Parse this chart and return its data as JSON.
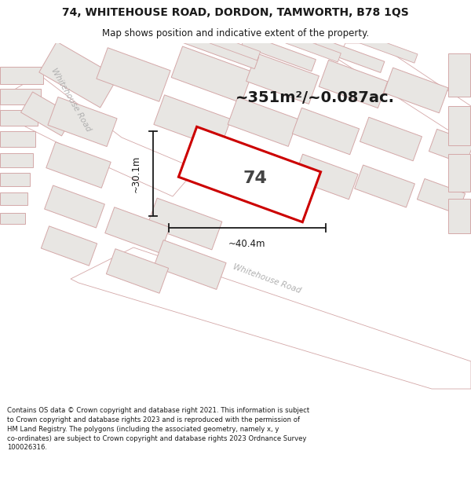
{
  "title_line1": "74, WHITEHOUSE ROAD, DORDON, TAMWORTH, B78 1QS",
  "title_line2": "Map shows position and indicative extent of the property.",
  "area_text": "~351m²/~0.087ac.",
  "dim_width": "~40.4m",
  "dim_height": "~30.1m",
  "property_number": "74",
  "footer_text_lines": [
    "Contains OS data © Crown copyright and database right 2021. This information is subject",
    "to Crown copyright and database rights 2023 and is reproduced with the permission of",
    "HM Land Registry. The polygons (including the associated geometry, namely x, y",
    "co-ordinates) are subject to Crown copyright and database rights 2023 Ordnance Survey",
    "100026316."
  ],
  "map_bg": "#f7f6f4",
  "title_bg": "#ffffff",
  "footer_bg": "#ffffff",
  "property_fill": "#ffffff",
  "property_edge": "#cc0000",
  "building_fill": "#e8e6e3",
  "building_edge": "#d4a8a8",
  "road_fill": "#ffffff",
  "road_edge": "#d4a8a8",
  "road_label_color": "#aaaaaa",
  "dim_color": "#1a1a1a",
  "title_color": "#1a1a1a",
  "footer_color": "#1a1a1a",
  "area_color": "#1a1a1a"
}
